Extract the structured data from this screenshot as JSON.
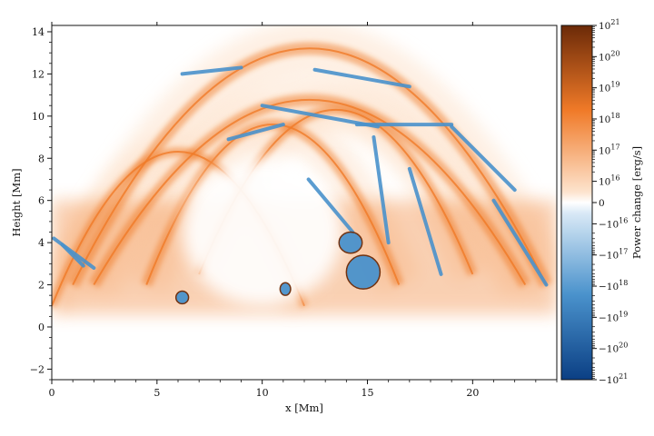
{
  "chart_data": {
    "type": "heatmap",
    "title": "",
    "xlabel": "x [Mm]",
    "ylabel": "Height [Mm]",
    "xlim": [
      0,
      24
    ],
    "ylim": [
      -2.5,
      14.3
    ],
    "x_ticks": [
      0,
      5,
      10,
      15,
      20
    ],
    "x_tick_labels": [
      "0",
      "5",
      "10",
      "15",
      "20"
    ],
    "y_ticks": [
      -2,
      0,
      2,
      4,
      6,
      8,
      10,
      12,
      14
    ],
    "y_tick_labels": [
      "−2",
      "0",
      "2",
      "4",
      "6",
      "8",
      "10",
      "12",
      "14"
    ],
    "colorbar": {
      "label": "Power change [erg/s]",
      "scale": "symlog",
      "linthresh_exponent": 16,
      "max_exponent": 21,
      "colors": {
        "positive_max": "#6b2a08",
        "positive_mid": "#f07a28",
        "positive_low": "#fde3cd",
        "zero": "#ffffff",
        "negative_low": "#d9e9f6",
        "negative_mid": "#4a92cc",
        "negative_max": "#0b3f84"
      },
      "tick_labels": [
        {
          "value": 21,
          "text": "10^21"
        },
        {
          "value": 20,
          "text": "10^20"
        },
        {
          "value": 19,
          "text": "10^19"
        },
        {
          "value": 18,
          "text": "10^18"
        },
        {
          "value": 17,
          "text": "10^17"
        },
        {
          "value": 16,
          "text": "10^16"
        },
        {
          "value": 0,
          "text": "0"
        },
        {
          "value": -16,
          "text": "−10^16"
        },
        {
          "value": -17,
          "text": "−10^17"
        },
        {
          "value": -18,
          "text": "−10^18"
        },
        {
          "value": -19,
          "text": "−10^19"
        },
        {
          "value": -20,
          "text": "−10^20"
        },
        {
          "value": -21,
          "text": "−10^21"
        }
      ]
    },
    "features": {
      "arches": [
        {
          "x_start": 1.0,
          "x_end": 23.5,
          "base_height": 2.0,
          "peak_height": 13.5,
          "sign": "positive"
        },
        {
          "x_start": 2.0,
          "x_end": 22.5,
          "base_height": 2.0,
          "peak_height": 11.0,
          "sign": "positive"
        },
        {
          "x_start": 4.5,
          "x_end": 16.5,
          "base_height": 2.0,
          "peak_height": 9.8,
          "sign": "positive"
        },
        {
          "x_start": 7.0,
          "x_end": 20.0,
          "base_height": 2.5,
          "peak_height": 10.5,
          "sign": "positive"
        },
        {
          "x_start": 0.0,
          "x_end": 12.0,
          "base_height": 1.0,
          "peak_height": 8.5,
          "sign": "positive"
        }
      ],
      "negative_strands": [
        {
          "x": [
            6.2,
            9.0
          ],
          "y": [
            12.0,
            12.3
          ]
        },
        {
          "x": [
            12.5,
            17.0
          ],
          "y": [
            12.2,
            11.4
          ]
        },
        {
          "x": [
            10.0,
            15.5
          ],
          "y": [
            10.5,
            9.5
          ]
        },
        {
          "x": [
            14.5,
            19.0
          ],
          "y": [
            9.6,
            9.6
          ]
        },
        {
          "x": [
            8.4,
            11.0
          ],
          "y": [
            8.9,
            9.6
          ]
        },
        {
          "x": [
            12.2,
            14.3
          ],
          "y": [
            7.0,
            4.5
          ]
        },
        {
          "x": [
            15.3,
            16.0
          ],
          "y": [
            9.0,
            4.0
          ]
        },
        {
          "x": [
            17.0,
            18.5
          ],
          "y": [
            7.5,
            2.5
          ]
        },
        {
          "x": [
            19.0,
            22.0
          ],
          "y": [
            9.5,
            6.5
          ]
        },
        {
          "x": [
            0.1,
            2.0
          ],
          "y": [
            4.2,
            2.8
          ]
        },
        {
          "x": [
            0.5,
            1.5
          ],
          "y": [
            3.9,
            2.9
          ]
        },
        {
          "x": [
            21.0,
            23.5
          ],
          "y": [
            6.0,
            2.0
          ]
        }
      ],
      "negative_blobs": [
        {
          "x": 14.8,
          "y": 2.6,
          "rx": 0.8,
          "ry": 0.8
        },
        {
          "x": 14.2,
          "y": 4.0,
          "rx": 0.55,
          "ry": 0.5
        },
        {
          "x": 6.2,
          "y": 1.4,
          "rx": 0.3,
          "ry": 0.3
        },
        {
          "x": 11.1,
          "y": 1.8,
          "rx": 0.25,
          "ry": 0.3
        }
      ],
      "empty_cavity": {
        "x": 10.0,
        "y": 4.5,
        "rx": 3.8,
        "ry": 3.5
      },
      "positive_spikes": [
        {
          "x": 11.2,
          "y_top": 2.5,
          "y_bottom": -0.4
        },
        {
          "x": 12.8,
          "y_top": 3.5,
          "y_bottom": 1.2
        },
        {
          "x": 16.2,
          "y_top": 2.0,
          "y_bottom": 0.5
        },
        {
          "x": 6.3,
          "y_top": 2.0,
          "y_bottom": 0.6
        }
      ]
    }
  }
}
